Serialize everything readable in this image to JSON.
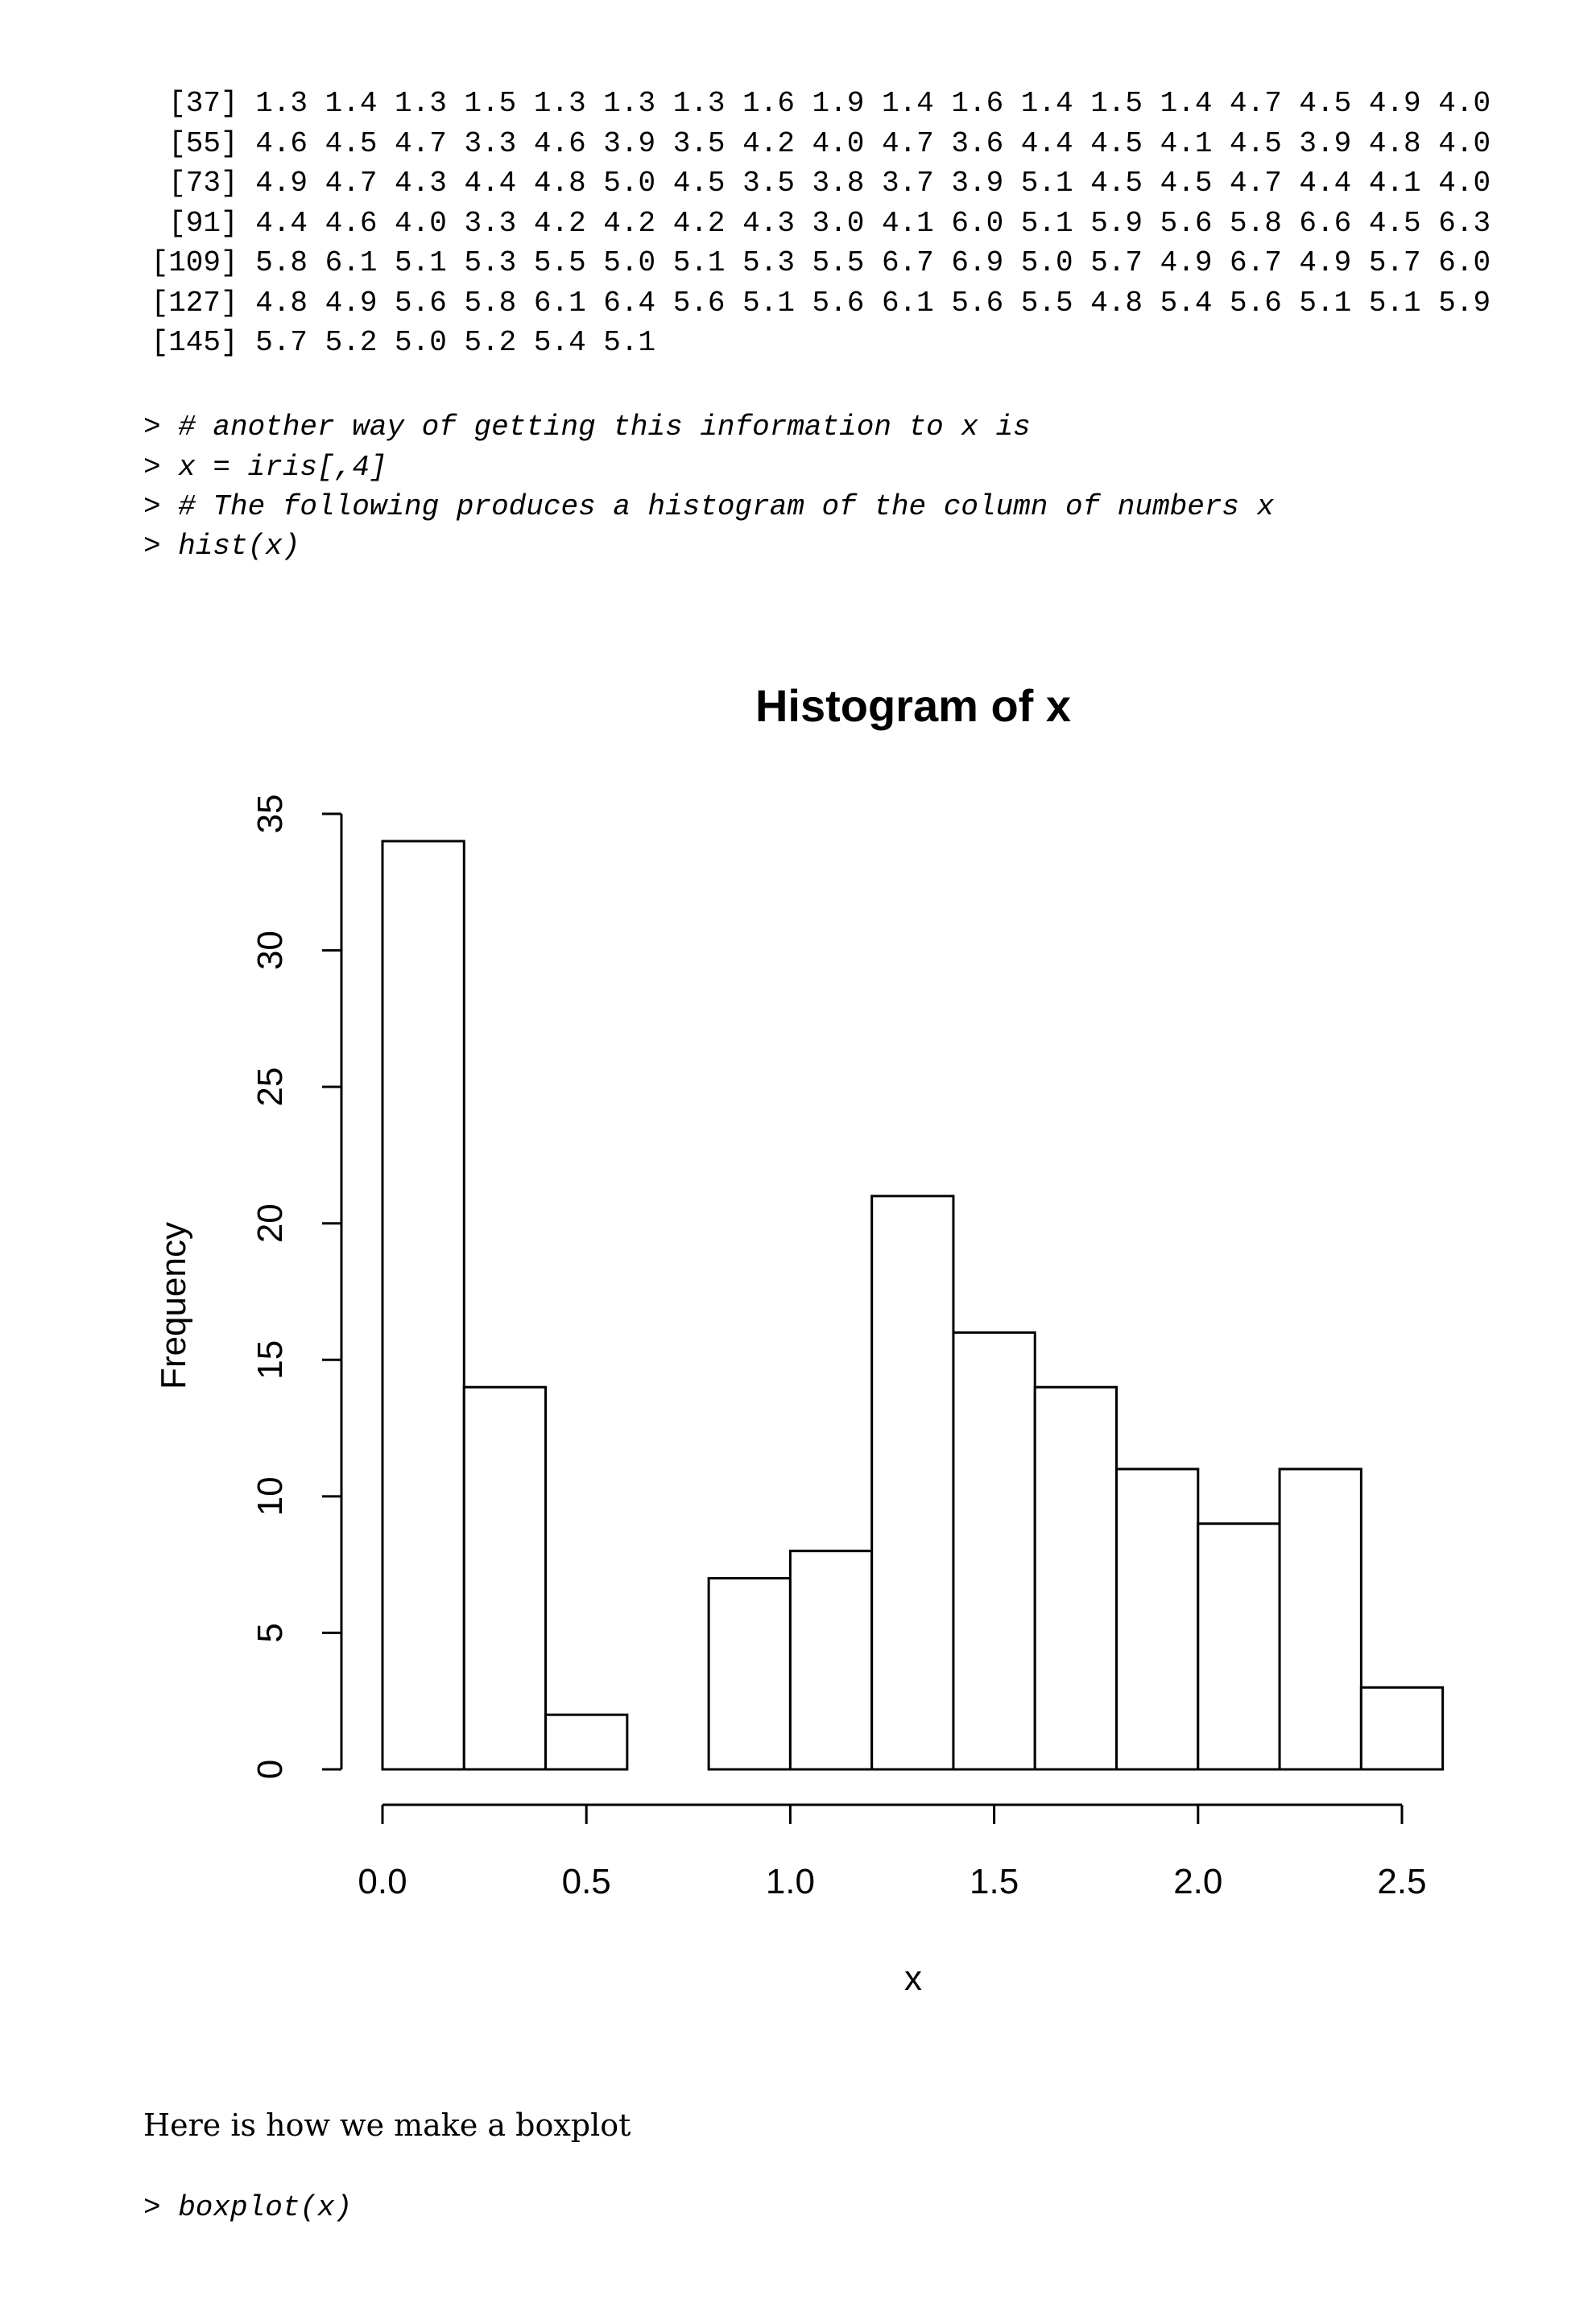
{
  "output_lines": [
    "  [37] 1.3 1.4 1.3 1.5 1.3 1.3 1.3 1.6 1.9 1.4 1.6 1.4 1.5 1.4 4.7 4.5 4.9 4.0",
    "  [55] 4.6 4.5 4.7 3.3 4.6 3.9 3.5 4.2 4.0 4.7 3.6 4.4 4.5 4.1 4.5 3.9 4.8 4.0",
    "  [73] 4.9 4.7 4.3 4.4 4.8 5.0 4.5 3.5 3.8 3.7 3.9 5.1 4.5 4.5 4.7 4.4 4.1 4.0",
    "  [91] 4.4 4.6 4.0 3.3 4.2 4.2 4.2 4.3 3.0 4.1 6.0 5.1 5.9 5.6 5.8 6.6 4.5 6.3",
    " [109] 5.8 6.1 5.1 5.3 5.5 5.0 5.1 5.3 5.5 6.7 6.9 5.0 5.7 4.9 6.7 4.9 5.7 6.0",
    " [127] 4.8 4.9 5.6 5.8 6.1 6.4 5.6 5.1 5.6 6.1 5.6 5.5 4.8 5.4 5.6 5.1 5.1 5.9",
    " [145] 5.7 5.2 5.0 5.2 5.4 5.1"
  ],
  "commands": [
    "> # another way of getting this information to x is",
    "> x = iris[,4]",
    "> # The following produces a histogram of the column of numbers x",
    "> hist(x)"
  ],
  "chart_data": {
    "type": "bar",
    "title": "Histogram of x",
    "xlabel": "x",
    "ylabel": "Frequency",
    "bin_edges": [
      0.0,
      0.2,
      0.4,
      0.6,
      0.8,
      1.0,
      1.2,
      1.4,
      1.6,
      1.8,
      2.0,
      2.2,
      2.4,
      2.6
    ],
    "values": [
      34,
      14,
      2,
      0,
      7,
      8,
      21,
      16,
      14,
      11,
      9,
      11,
      3
    ],
    "xticks": [
      "0.0",
      "0.5",
      "1.0",
      "1.5",
      "2.0",
      "2.5"
    ],
    "yticks": [
      "0",
      "5",
      "10",
      "15",
      "20",
      "25",
      "30",
      "35"
    ],
    "xlim": [
      0,
      2.6
    ],
    "ylim": [
      0,
      35
    ],
    "grid": false,
    "bar_fill": "#ffffff",
    "bar_stroke": "#000000"
  },
  "prose": "Here is how we make a boxplot",
  "command_after": "> boxplot(x)"
}
